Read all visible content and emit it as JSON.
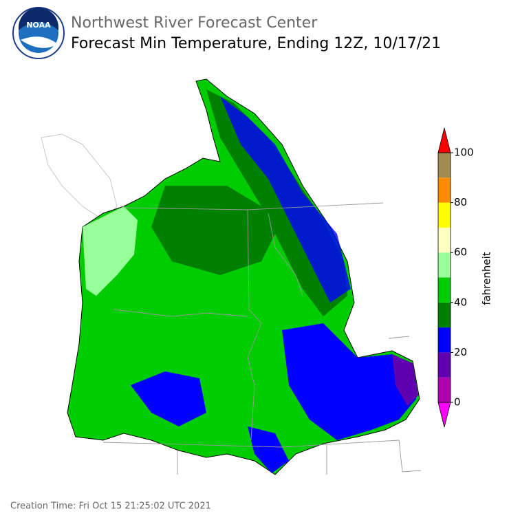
{
  "header": {
    "logo_text": "NOAA",
    "title": "Northwest River Forecast Center",
    "subtitle": "Forecast Min Temperature, Ending 12Z, 10/17/21"
  },
  "colorbar": {
    "label": "fahrenheit",
    "bounds": [
      0,
      10,
      20,
      30,
      40,
      50,
      60,
      70,
      80,
      90,
      100
    ],
    "colors": [
      "#b000b0",
      "#6000b0",
      "#0000ff",
      "#008000",
      "#00cc00",
      "#99ff99",
      "#ffffc0",
      "#ffff00",
      "#ff8c00",
      "#a08c50"
    ],
    "under_color": "#ff00ff",
    "over_color": "#ff0000",
    "ticks": [
      0,
      20,
      40,
      60,
      80,
      100
    ]
  },
  "footer": {
    "creation_time": "Creation Time: Fri Oct 15 21:25:02 UTC 2021"
  }
}
